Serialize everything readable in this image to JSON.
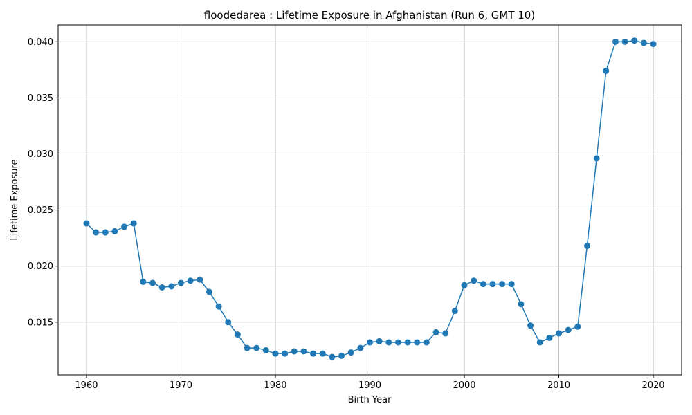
{
  "chart_data": {
    "type": "line",
    "title": "floodedarea : Lifetime Exposure in Afghanistan (Run 6, GMT 10)",
    "xlabel": "Birth Year",
    "ylabel": "Lifetime Exposure",
    "xlim": [
      1957,
      2023
    ],
    "ylim": [
      0.0103,
      0.0415
    ],
    "xticks": [
      1960,
      1970,
      1980,
      1990,
      2000,
      2010,
      2020
    ],
    "yticks": [
      0.015,
      0.02,
      0.025,
      0.03,
      0.035,
      0.04
    ],
    "ytick_labels": [
      "0.015",
      "0.020",
      "0.025",
      "0.030",
      "0.035",
      "0.040"
    ],
    "grid": true,
    "color": "#1f77b4",
    "series": [
      {
        "x": [
          1960,
          1961,
          1962,
          1963,
          1964,
          1965,
          1966,
          1967,
          1968,
          1969,
          1970,
          1971,
          1972,
          1973,
          1974,
          1975,
          1976,
          1977,
          1978,
          1979,
          1980,
          1981,
          1982,
          1983,
          1984,
          1985,
          1986,
          1987,
          1988,
          1989,
          1990,
          1991,
          1992,
          1993,
          1994,
          1995,
          1996,
          1997,
          1998,
          1999,
          2000,
          2001,
          2002,
          2003,
          2004,
          2005,
          2006,
          2007,
          2008,
          2009,
          2010,
          2011,
          2012,
          2013,
          2014,
          2015,
          2016,
          2017,
          2018,
          2019,
          2020
        ],
        "values": [
          0.0238,
          0.023,
          0.023,
          0.0231,
          0.0235,
          0.0238,
          0.0186,
          0.0185,
          0.0181,
          0.0182,
          0.0185,
          0.0187,
          0.0188,
          0.0177,
          0.0164,
          0.015,
          0.0139,
          0.0127,
          0.0127,
          0.0125,
          0.0122,
          0.0122,
          0.0124,
          0.0124,
          0.0122,
          0.0122,
          0.0119,
          0.012,
          0.0123,
          0.0127,
          0.0132,
          0.0133,
          0.0132,
          0.0132,
          0.0132,
          0.0132,
          0.0132,
          0.0141,
          0.014,
          0.016,
          0.0183,
          0.0187,
          0.0184,
          0.0184,
          0.0184,
          0.0184,
          0.0166,
          0.0147,
          0.0132,
          0.0136,
          0.014,
          0.0143,
          0.0146,
          0.0218,
          0.0296,
          0.0374,
          0.04,
          0.04,
          0.0401,
          0.0399,
          0.0398
        ]
      }
    ]
  }
}
